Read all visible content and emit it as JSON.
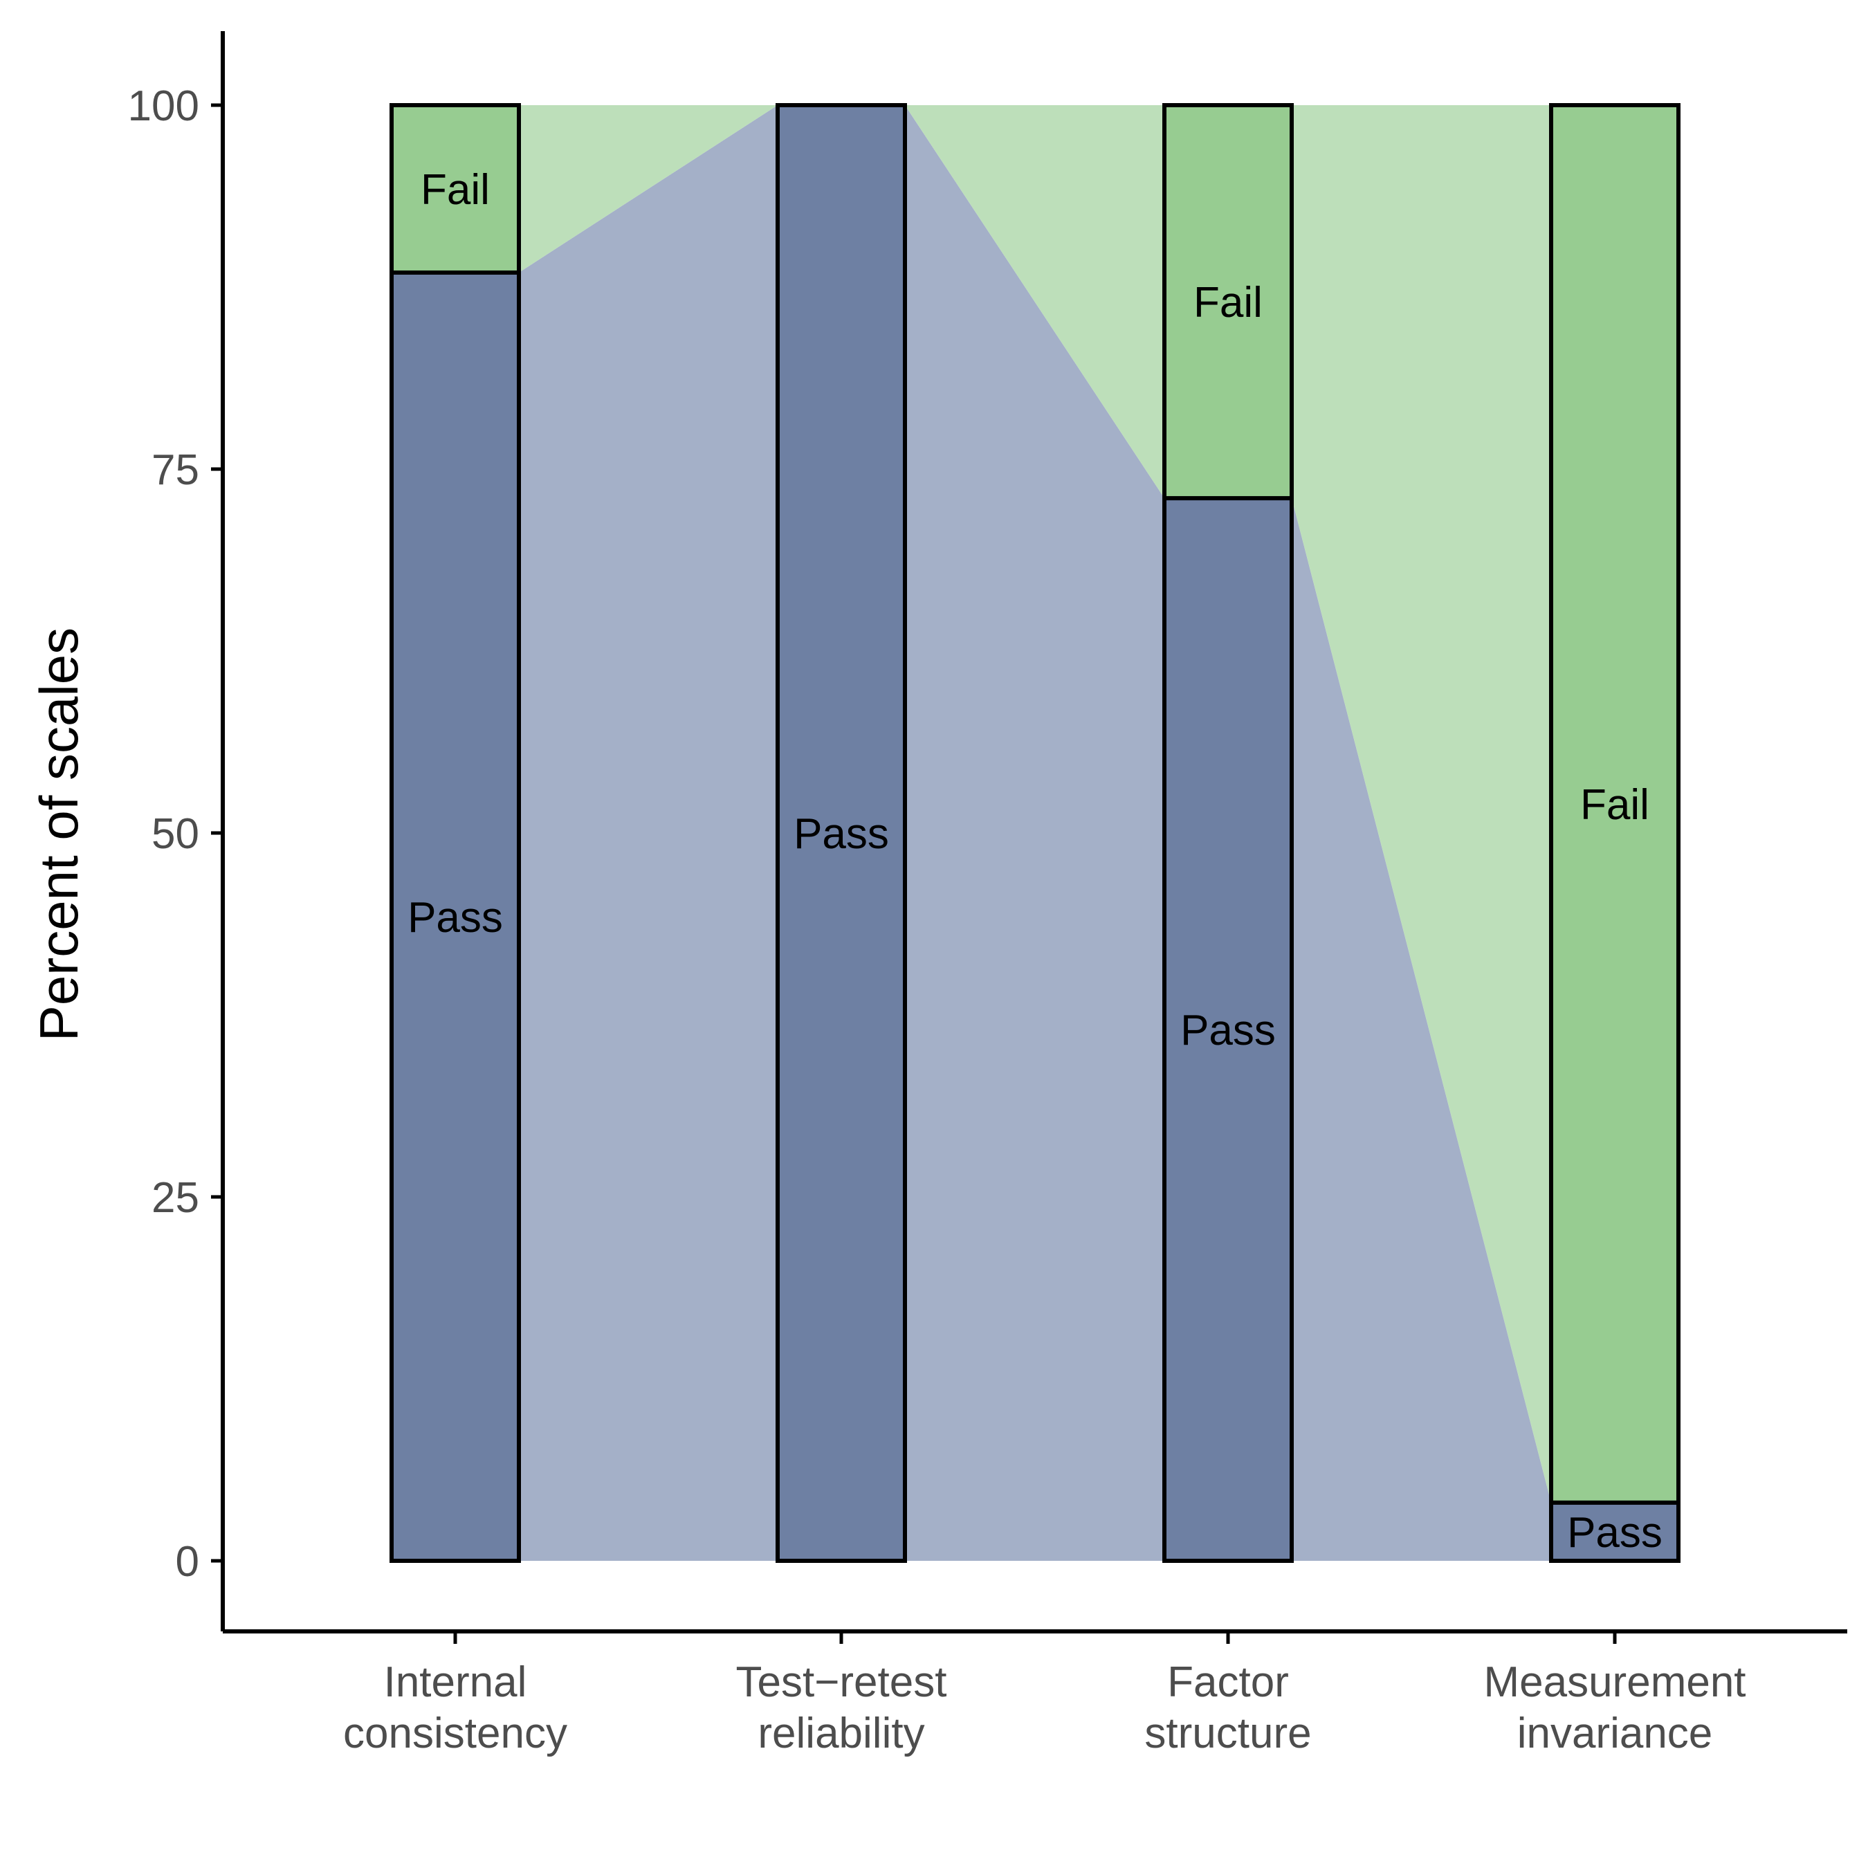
{
  "chart_data": {
    "type": "bar",
    "subtype": "stacked-percent-alluvial",
    "title": "",
    "xlabel": "",
    "ylabel": "Percent of scales",
    "ylim": [
      -10,
      105
    ],
    "yticks": [
      0,
      25,
      50,
      75,
      100
    ],
    "categories": [
      [
        "Internal",
        "consistency"
      ],
      [
        "Test−retest",
        "reliability"
      ],
      [
        "Factor",
        "structure"
      ],
      [
        "Measurement",
        "invariance"
      ]
    ],
    "series": [
      {
        "name": "Pass",
        "values": [
          88.5,
          100,
          73,
          4
        ]
      },
      {
        "name": "Fail",
        "values": [
          11.5,
          0,
          27,
          96
        ]
      }
    ],
    "segment_labels": {
      "pass": "Pass",
      "fail": "Fail"
    },
    "colors": {
      "pass": "#6e80a3",
      "fail": "#97cc91",
      "pass_flow": "#a4b0c8",
      "fail_flow": "#bddfba",
      "outline": "#000000",
      "tick_text": "#4d4d4d"
    },
    "grid": false,
    "legend": "none"
  }
}
